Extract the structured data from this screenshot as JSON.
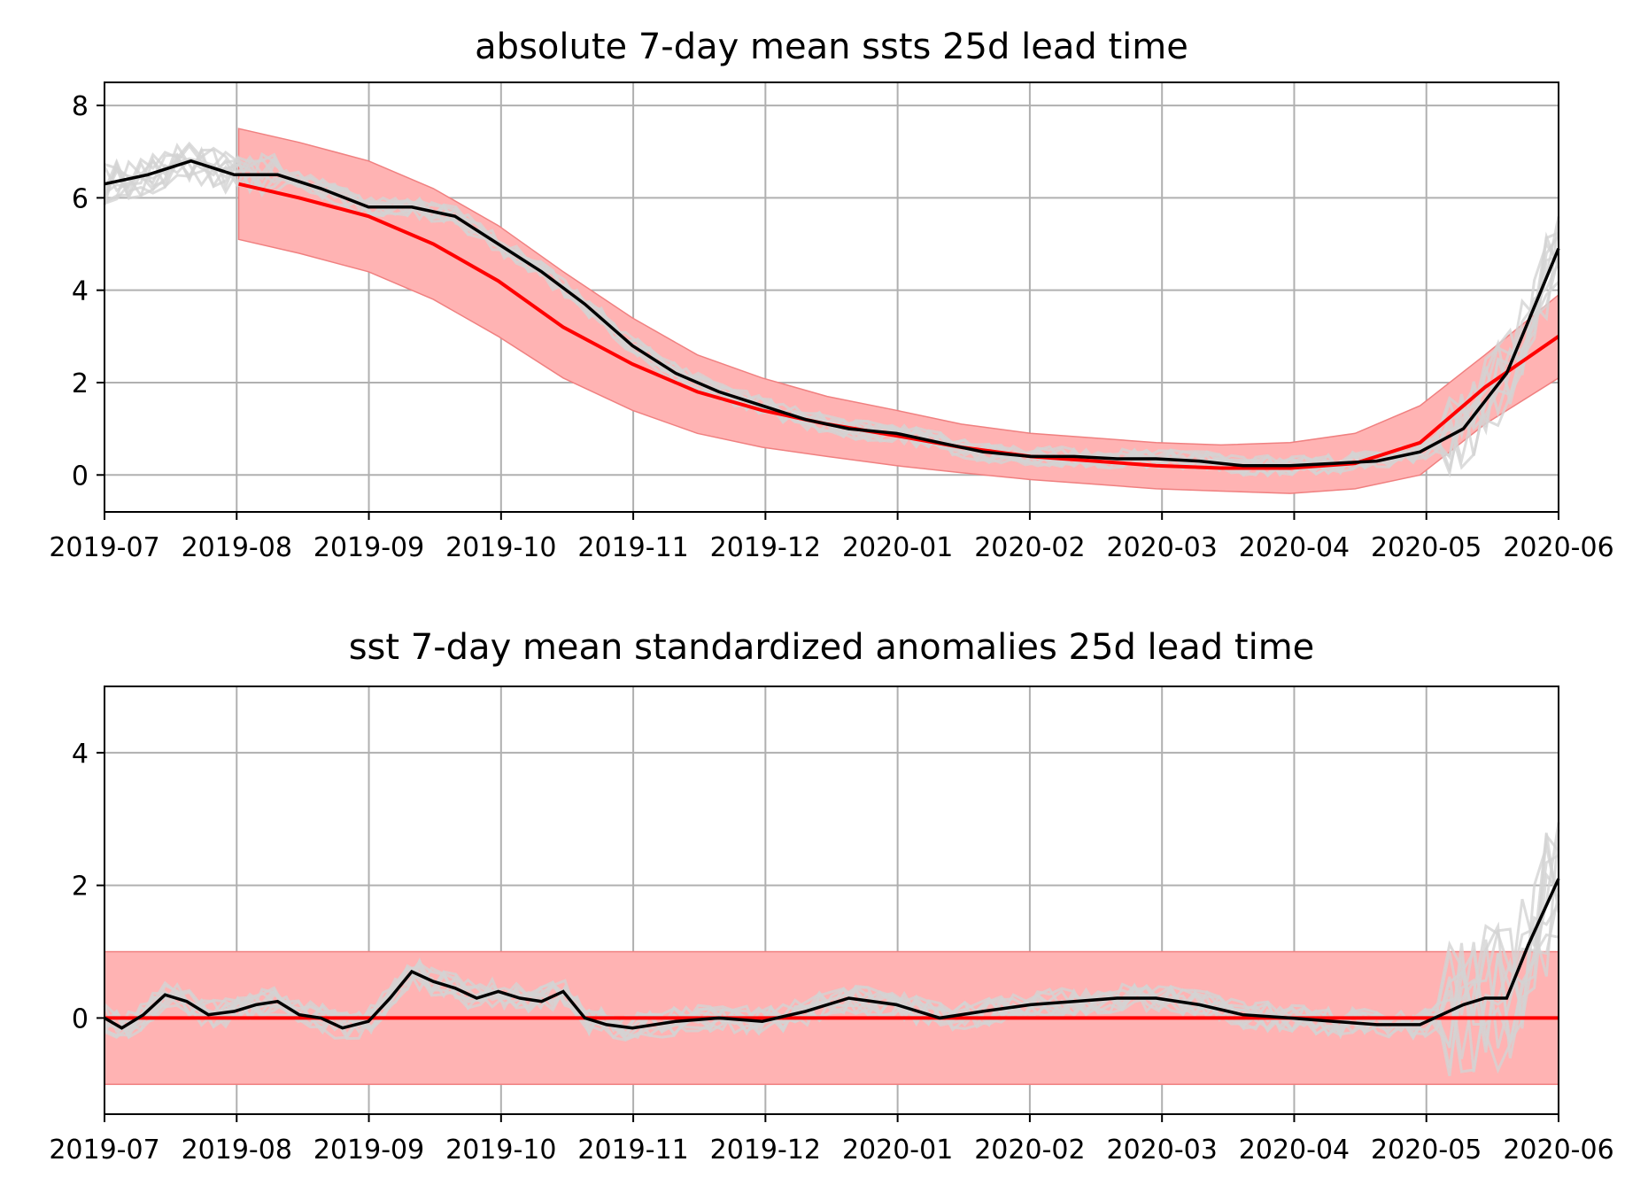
{
  "colors": {
    "observed": "#000000",
    "climatology": "#ff0000",
    "band": "#ffb3b3",
    "band_edge": "#f08080",
    "ensemble": "#d3d3d3",
    "grid": "#b0b0b0"
  },
  "chart_data": [
    {
      "type": "line",
      "title": "absolute 7-day mean ssts 25d lead time",
      "xlabel": "",
      "ylabel": "",
      "x_ticks": [
        "2019-07",
        "2019-08",
        "2019-09",
        "2019-10",
        "2019-11",
        "2019-12",
        "2020-01",
        "2020-02",
        "2020-03",
        "2020-04",
        "2020-05",
        "2020-06"
      ],
      "x_range": [
        "2019-07",
        "2020-06"
      ],
      "ylim": [
        -0.8,
        8.5
      ],
      "y_ticks": [
        0,
        2,
        4,
        6,
        8
      ],
      "grid": true,
      "legend": "none",
      "series": [
        {
          "role": "observed",
          "x": [
            "2019-07-01",
            "2019-07-11",
            "2019-07-21",
            "2019-07-31",
            "2019-08-10",
            "2019-08-20",
            "2019-08-31",
            "2019-09-10",
            "2019-09-20",
            "2019-09-30",
            "2019-10-10",
            "2019-10-20",
            "2019-10-31",
            "2019-11-10",
            "2019-11-20",
            "2019-11-30",
            "2019-12-10",
            "2019-12-20",
            "2019-12-31",
            "2020-01-10",
            "2020-01-20",
            "2020-01-31",
            "2020-02-10",
            "2020-02-20",
            "2020-02-29",
            "2020-03-10",
            "2020-03-20",
            "2020-03-31",
            "2020-04-10",
            "2020-04-20",
            "2020-04-30",
            "2020-05-10",
            "2020-05-20",
            "2020-06-01"
          ],
          "values": [
            6.3,
            6.5,
            6.8,
            6.5,
            6.5,
            6.2,
            5.8,
            5.8,
            5.6,
            5.0,
            4.4,
            3.7,
            2.8,
            2.2,
            1.8,
            1.5,
            1.2,
            1.0,
            0.9,
            0.7,
            0.5,
            0.4,
            0.4,
            0.35,
            0.35,
            0.3,
            0.2,
            0.2,
            0.25,
            0.3,
            0.5,
            1.0,
            2.2,
            4.9
          ]
        },
        {
          "role": "climatology",
          "x": [
            "2019-08-01",
            "2019-08-15",
            "2019-08-31",
            "2019-09-15",
            "2019-09-30",
            "2019-10-15",
            "2019-10-31",
            "2019-11-15",
            "2019-11-30",
            "2019-12-15",
            "2019-12-31",
            "2020-01-15",
            "2020-01-31",
            "2020-02-15",
            "2020-02-29",
            "2020-03-15",
            "2020-03-31",
            "2020-04-15",
            "2020-04-30",
            "2020-05-15",
            "2020-06-01"
          ],
          "values": [
            6.3,
            6.0,
            5.6,
            5.0,
            4.2,
            3.2,
            2.4,
            1.8,
            1.4,
            1.1,
            0.85,
            0.6,
            0.4,
            0.3,
            0.2,
            0.15,
            0.15,
            0.25,
            0.7,
            1.9,
            3.0
          ]
        },
        {
          "role": "band_upper",
          "x": [
            "2019-08-01",
            "2019-08-15",
            "2019-08-31",
            "2019-09-15",
            "2019-09-30",
            "2019-10-15",
            "2019-10-31",
            "2019-11-15",
            "2019-11-30",
            "2019-12-15",
            "2019-12-31",
            "2020-01-15",
            "2020-01-31",
            "2020-02-15",
            "2020-02-29",
            "2020-03-15",
            "2020-03-31",
            "2020-04-15",
            "2020-04-30",
            "2020-05-15",
            "2020-06-01"
          ],
          "values": [
            7.5,
            7.2,
            6.8,
            6.2,
            5.4,
            4.4,
            3.4,
            2.6,
            2.1,
            1.7,
            1.4,
            1.1,
            0.9,
            0.8,
            0.7,
            0.65,
            0.7,
            0.9,
            1.5,
            2.6,
            3.9
          ]
        },
        {
          "role": "band_lower",
          "x": [
            "2019-08-01",
            "2019-08-15",
            "2019-08-31",
            "2019-09-15",
            "2019-09-30",
            "2019-10-15",
            "2019-10-31",
            "2019-11-15",
            "2019-11-30",
            "2019-12-15",
            "2019-12-31",
            "2020-01-15",
            "2020-01-31",
            "2020-02-15",
            "2020-02-29",
            "2020-03-15",
            "2020-03-31",
            "2020-04-15",
            "2020-04-30",
            "2020-05-15",
            "2020-06-01"
          ],
          "values": [
            5.1,
            4.8,
            4.4,
            3.8,
            3.0,
            2.1,
            1.4,
            0.9,
            0.6,
            0.4,
            0.2,
            0.05,
            -0.1,
            -0.2,
            -0.3,
            -0.35,
            -0.4,
            -0.3,
            0.0,
            1.1,
            2.1
          ]
        }
      ]
    },
    {
      "type": "line",
      "title": "sst 7-day mean standardized anomalies 25d lead time",
      "xlabel": "",
      "ylabel": "",
      "x_ticks": [
        "2019-07",
        "2019-08",
        "2019-09",
        "2019-10",
        "2019-11",
        "2019-12",
        "2020-01",
        "2020-02",
        "2020-03",
        "2020-04",
        "2020-05",
        "2020-06"
      ],
      "x_range": [
        "2019-07",
        "2020-06"
      ],
      "ylim": [
        -1.45,
        5.0
      ],
      "y_ticks": [
        0,
        2,
        4
      ],
      "grid": true,
      "legend": "none",
      "band": [
        -1,
        1
      ],
      "climatology_value": 0,
      "series": [
        {
          "role": "observed",
          "x": [
            "2019-07-01",
            "2019-07-05",
            "2019-07-10",
            "2019-07-15",
            "2019-07-20",
            "2019-07-25",
            "2019-07-31",
            "2019-08-05",
            "2019-08-10",
            "2019-08-15",
            "2019-08-20",
            "2019-08-25",
            "2019-08-31",
            "2019-09-05",
            "2019-09-10",
            "2019-09-15",
            "2019-09-20",
            "2019-09-25",
            "2019-09-30",
            "2019-10-05",
            "2019-10-10",
            "2019-10-15",
            "2019-10-20",
            "2019-10-25",
            "2019-10-31",
            "2019-11-10",
            "2019-11-20",
            "2019-11-30",
            "2019-12-10",
            "2019-12-20",
            "2019-12-31",
            "2020-01-10",
            "2020-01-20",
            "2020-01-31",
            "2020-02-10",
            "2020-02-20",
            "2020-02-29",
            "2020-03-10",
            "2020-03-20",
            "2020-03-31",
            "2020-04-10",
            "2020-04-20",
            "2020-04-30",
            "2020-05-10",
            "2020-05-15",
            "2020-05-20",
            "2020-05-25",
            "2020-06-01"
          ],
          "values": [
            0.0,
            -0.15,
            0.05,
            0.35,
            0.25,
            0.05,
            0.1,
            0.2,
            0.25,
            0.05,
            0.0,
            -0.15,
            -0.05,
            0.3,
            0.7,
            0.55,
            0.45,
            0.3,
            0.4,
            0.3,
            0.25,
            0.4,
            0.0,
            -0.1,
            -0.15,
            -0.05,
            0.0,
            -0.05,
            0.1,
            0.3,
            0.2,
            0.0,
            0.1,
            0.2,
            0.25,
            0.3,
            0.3,
            0.2,
            0.05,
            0.0,
            -0.05,
            -0.1,
            -0.1,
            0.2,
            0.3,
            0.3,
            1.1,
            2.1
          ]
        }
      ]
    }
  ]
}
